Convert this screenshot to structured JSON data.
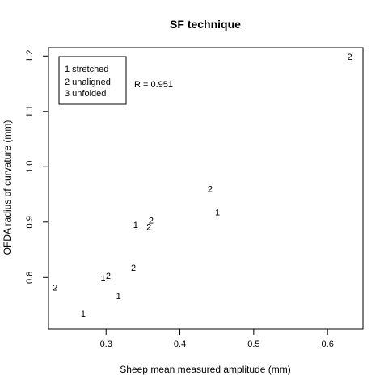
{
  "chart_data": {
    "type": "scatter",
    "title": "SF technique",
    "xlabel": "Sheep mean measured amplitude (mm)",
    "ylabel": "OFDA radius of curvature (mm)",
    "xlim": [
      0.222,
      0.648
    ],
    "ylim": [
      0.707,
      1.215
    ],
    "xticks": [
      0.3,
      0.4,
      0.5,
      0.6
    ],
    "xtick_labels": [
      "0.3",
      "0.4",
      "0.5",
      "0.6"
    ],
    "yticks": [
      0.8,
      0.9,
      1.0,
      1.1,
      1.2
    ],
    "ytick_labels": [
      "0.8",
      "0.9",
      "1.0",
      "1.1",
      "1.2"
    ],
    "points": [
      {
        "x": 0.231,
        "y": 0.782,
        "label": "2"
      },
      {
        "x": 0.269,
        "y": 0.735,
        "label": "1"
      },
      {
        "x": 0.296,
        "y": 0.799,
        "label": "1"
      },
      {
        "x": 0.303,
        "y": 0.803,
        "label": "2"
      },
      {
        "x": 0.317,
        "y": 0.767,
        "label": "1"
      },
      {
        "x": 0.337,
        "y": 0.818,
        "label": "2"
      },
      {
        "x": 0.34,
        "y": 0.895,
        "label": "1"
      },
      {
        "x": 0.358,
        "y": 0.892,
        "label": "2"
      },
      {
        "x": 0.361,
        "y": 0.903,
        "label": "2"
      },
      {
        "x": 0.441,
        "y": 0.96,
        "label": "2"
      },
      {
        "x": 0.451,
        "y": 0.918,
        "label": "1"
      },
      {
        "x": 0.63,
        "y": 1.199,
        "label": "2"
      }
    ],
    "legend": {
      "placement": "top-left",
      "entries": [
        "1  stretched",
        "2  unaligned",
        "3  unfolded"
      ]
    },
    "annotation": "R = 0.951",
    "grid": false
  }
}
